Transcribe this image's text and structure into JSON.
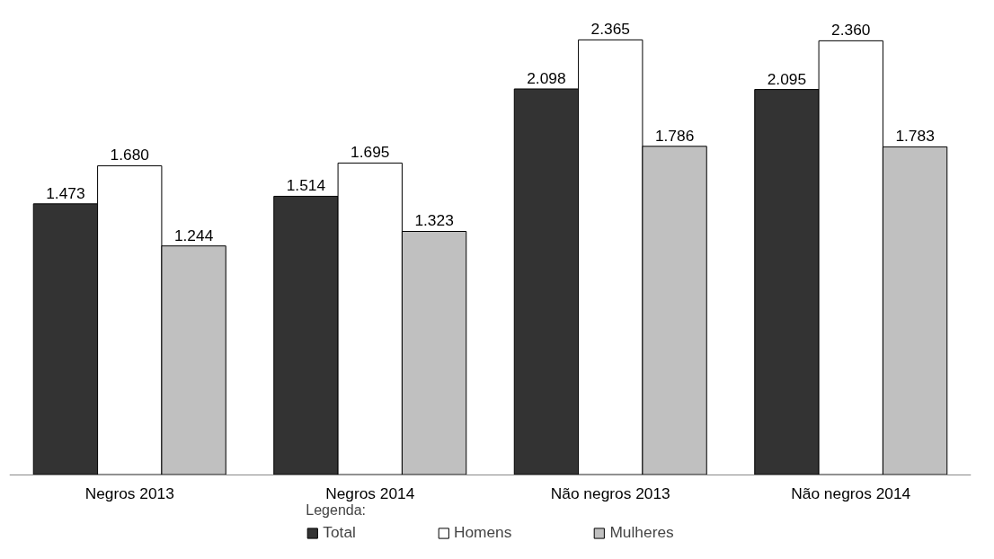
{
  "chart_data": {
    "type": "bar",
    "categories": [
      "Negros 2013",
      "Negros 2014",
      "Não negros 2013",
      "Não negros 2014"
    ],
    "legend_title": "Legenda:",
    "legend": "bottom",
    "grid": false,
    "series": [
      {
        "name": "Total",
        "color": "#333333",
        "values": [
          1473,
          1514,
          2098,
          2095
        ],
        "value_labels": [
          "1.473",
          "1.514",
          "2.098",
          "2.095"
        ]
      },
      {
        "name": "Homens",
        "color": "#ffffff",
        "values": [
          1680,
          1695,
          2365,
          2360
        ],
        "value_labels": [
          "1.680",
          "1.695",
          "2.365",
          "2.360"
        ]
      },
      {
        "name": "Mulheres",
        "color": "#c0c0c0",
        "values": [
          1244,
          1323,
          1786,
          1783
        ],
        "value_labels": [
          "1.244",
          "1.323",
          "1.786",
          "1.783"
        ]
      }
    ]
  }
}
